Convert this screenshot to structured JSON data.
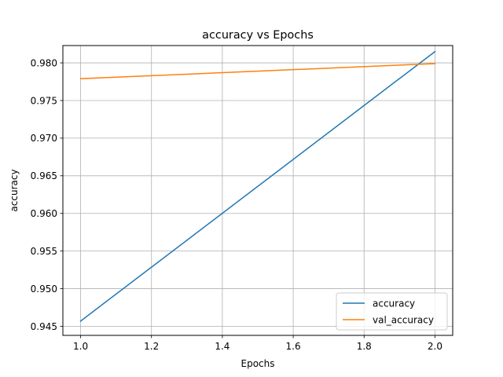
{
  "chart_data": {
    "type": "line",
    "title": "accuracy vs Epochs",
    "xlabel": "Epochs",
    "ylabel": "accuracy",
    "xlim": [
      0.95,
      2.05
    ],
    "ylim": [
      0.9438,
      0.9823
    ],
    "xticks": [
      1.0,
      1.2,
      1.4,
      1.6,
      1.8,
      2.0
    ],
    "xtick_labels": [
      "1.0",
      "1.2",
      "1.4",
      "1.6",
      "1.8",
      "2.0"
    ],
    "yticks": [
      0.945,
      0.95,
      0.955,
      0.96,
      0.965,
      0.97,
      0.975,
      0.98
    ],
    "ytick_labels": [
      "0.945",
      "0.950",
      "0.955",
      "0.960",
      "0.965",
      "0.970",
      "0.975",
      "0.980"
    ],
    "grid": true,
    "legend_position": "lower-right",
    "series": [
      {
        "name": "accuracy",
        "color": "#1f77b4",
        "x": [
          1.0,
          2.0
        ],
        "y": [
          0.9457,
          0.9815
        ]
      },
      {
        "name": "val_accuracy",
        "color": "#ff7f0e",
        "x": [
          1.0,
          2.0
        ],
        "y": [
          0.9779,
          0.9799
        ]
      }
    ]
  }
}
